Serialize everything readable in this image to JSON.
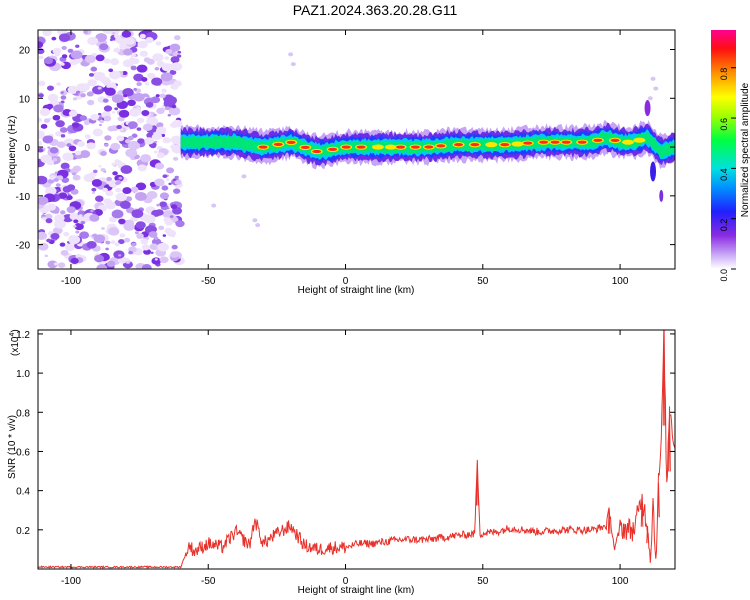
{
  "figure_title": "PAZ1.2024.363.20.28.G11",
  "chart_data": [
    {
      "type": "heatmap",
      "title": "",
      "xlabel": "Height of straight line (km)",
      "ylabel": "Frequency (Hz)",
      "xlim": [
        -112,
        120
      ],
      "ylim": [
        -25,
        24
      ],
      "xticks": [
        -100,
        -50,
        0,
        50,
        100
      ],
      "yticks": [
        -20,
        -10,
        0,
        10,
        20
      ],
      "grid": false,
      "colorbar": {
        "label": "Normalized spectral amplitude",
        "range": [
          0,
          0.95
        ],
        "ticks": [
          0.0,
          0.2,
          0.4,
          0.6,
          0.8
        ],
        "colormap": [
          "#ffffff",
          "#9b59f5",
          "#2020ff",
          "#00ffff",
          "#00ff00",
          "#ffff00",
          "#ff8000",
          "#ff0000",
          "#ff00aa"
        ]
      },
      "noise_region_x": [
        -112,
        -60
      ],
      "ridge": {
        "description_points_x": [
          -60,
          -50,
          -40,
          -30,
          -20,
          -10,
          0,
          10,
          20,
          30,
          40,
          50,
          60,
          70,
          80,
          90,
          95,
          100,
          105,
          110,
          115,
          120
        ],
        "center_freq_hz": [
          1,
          1,
          1,
          0,
          1,
          -1,
          0,
          0,
          0,
          0,
          0.5,
          0.5,
          0.5,
          1,
          1,
          1,
          2,
          1,
          1,
          2,
          -1,
          0
        ]
      }
    },
    {
      "type": "line",
      "title": "",
      "xlabel": "Height of straight line (km)",
      "ylabel": "SNR (10 * v/v)",
      "y_multiplier": "(x10",
      "y_multiplier_exp": "4",
      "xlim": [
        -112,
        120
      ],
      "ylim": [
        0,
        1.22
      ],
      "xticks": [
        -100,
        -50,
        0,
        50,
        100
      ],
      "yticks": [
        0.2,
        0.4,
        0.6,
        0.8,
        1.0,
        1.2
      ],
      "grid": false,
      "line_color": "#e8312a",
      "series": [
        {
          "x": [
            -112,
            -100,
            -80,
            -60,
            -57,
            -55,
            -50,
            -45,
            -40,
            -35,
            -33,
            -30,
            -25,
            -20,
            -15,
            -10,
            -5,
            0,
            5,
            10,
            20,
            30,
            40,
            47,
            48,
            49,
            55,
            60,
            70,
            80,
            90,
            95,
            96,
            98,
            100,
            105,
            108,
            110,
            111,
            112,
            113,
            114,
            115,
            116,
            117,
            118,
            120
          ],
          "values": [
            0.01,
            0.01,
            0.01,
            0.01,
            0.12,
            0.09,
            0.13,
            0.11,
            0.19,
            0.12,
            0.25,
            0.13,
            0.18,
            0.22,
            0.12,
            0.1,
            0.11,
            0.11,
            0.13,
            0.13,
            0.15,
            0.15,
            0.17,
            0.18,
            0.54,
            0.18,
            0.19,
            0.21,
            0.19,
            0.2,
            0.2,
            0.22,
            0.3,
            0.1,
            0.21,
            0.2,
            0.36,
            0.22,
            0.06,
            0.34,
            0.05,
            0.44,
            0.64,
            1.22,
            0.4,
            0.83,
            0.62
          ]
        }
      ]
    }
  ]
}
